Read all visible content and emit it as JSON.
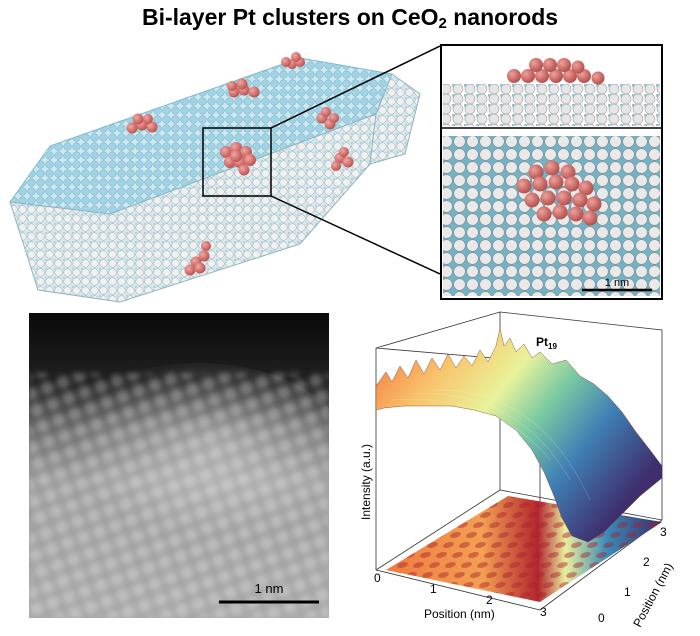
{
  "figure": {
    "title_main": "Bi-layer Pt clusters on CeO",
    "title_subscript": "2",
    "title_tail": " nanorods"
  },
  "inset": {
    "scale_bar_label": "1 nm"
  },
  "stem_image": {
    "scale_bar_label": "1 nm"
  },
  "surface_plot": {
    "cluster_label_main": "Pt",
    "cluster_label_sub": "19",
    "z_axis_label": "Intensity (a.u.)",
    "x_axis_label": "Position (nm)",
    "y_axis_label": "Position (nm)",
    "x_ticks": [
      "0",
      "1",
      "2",
      "3"
    ],
    "y_ticks": [
      "0",
      "1",
      "2",
      "3"
    ]
  },
  "colors": {
    "ceria_atom": "#9ed4e6",
    "oxygen_atom": "#f2f2f2",
    "platinum_atom": "#d9706d"
  }
}
